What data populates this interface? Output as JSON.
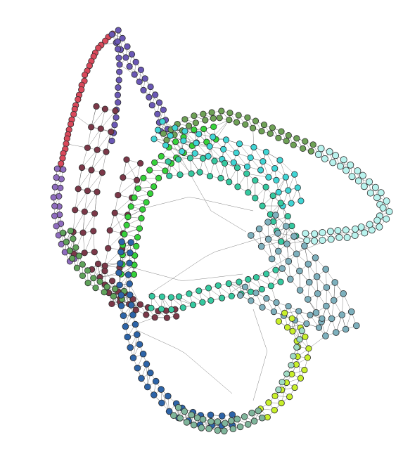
{
  "figure": {
    "type": "network-graph",
    "background": "#ffffff",
    "edge_color": "#3a3a3a",
    "node_outline": "#2b2b2b"
  },
  "clusters": [
    {
      "id": "red",
      "color": "#d9495b"
    },
    {
      "id": "purple",
      "color": "#6a58b5"
    },
    {
      "id": "lavender",
      "color": "#8e6cbe"
    },
    {
      "id": "maroon",
      "color": "#7b3848"
    },
    {
      "id": "green",
      "color": "#5fa35a"
    },
    {
      "id": "olive-green",
      "color": "#6ea156"
    },
    {
      "id": "bright-green",
      "color": "#35d23a"
    },
    {
      "id": "teal",
      "color": "#35c9a0"
    },
    {
      "id": "cyan",
      "color": "#3fd5d5"
    },
    {
      "id": "light-cyan",
      "color": "#b9f3ee"
    },
    {
      "id": "steel-blue",
      "color": "#7db0bd"
    },
    {
      "id": "mint",
      "color": "#a0dbc4"
    },
    {
      "id": "yellow-green",
      "color": "#c8ef2a"
    },
    {
      "id": "blue",
      "color": "#2d64a8"
    },
    {
      "id": "sage",
      "color": "#7fb59b"
    }
  ]
}
